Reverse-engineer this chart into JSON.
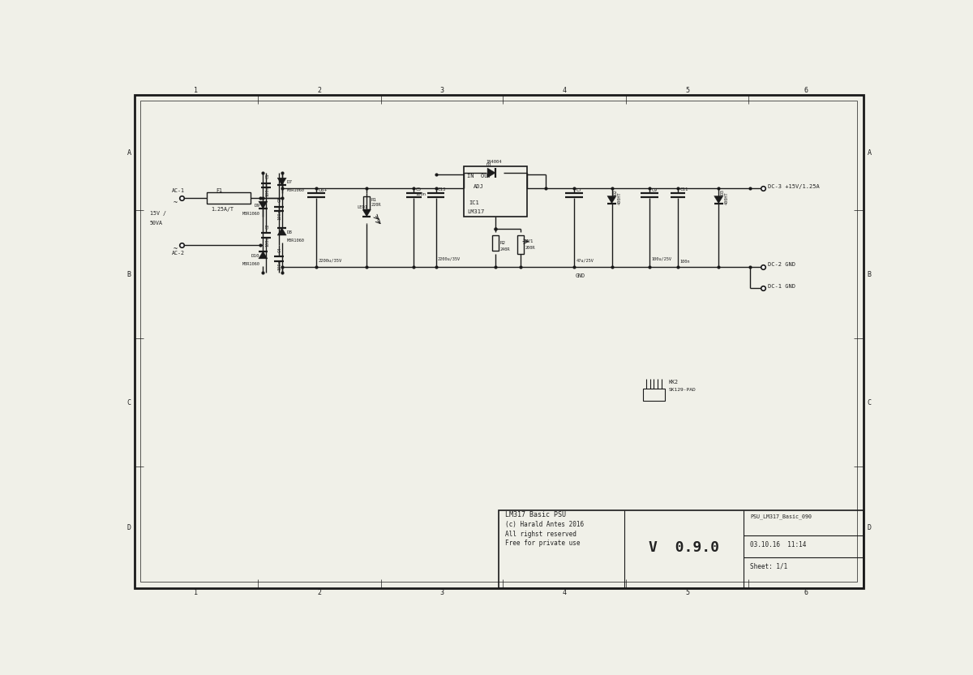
{
  "bg_color": "#f0f0e8",
  "line_color": "#1a1a1a",
  "font_color": "#222222",
  "title_line1": "LM317 Basic PSU",
  "title_line2": "(c) Harald Antes 2016",
  "title_line3": "All righst reserved",
  "title_line4": "Free for private use",
  "version": "V  0.9.0",
  "project_name": "PSU_LM317_Basic_090",
  "date": "03.10.16  11:14",
  "sheet": "Sheet: 1/1",
  "row_labels": [
    "A",
    "B",
    "C",
    "D"
  ],
  "col_labels": [
    "1",
    "2",
    "3",
    "4",
    "5",
    "6"
  ]
}
